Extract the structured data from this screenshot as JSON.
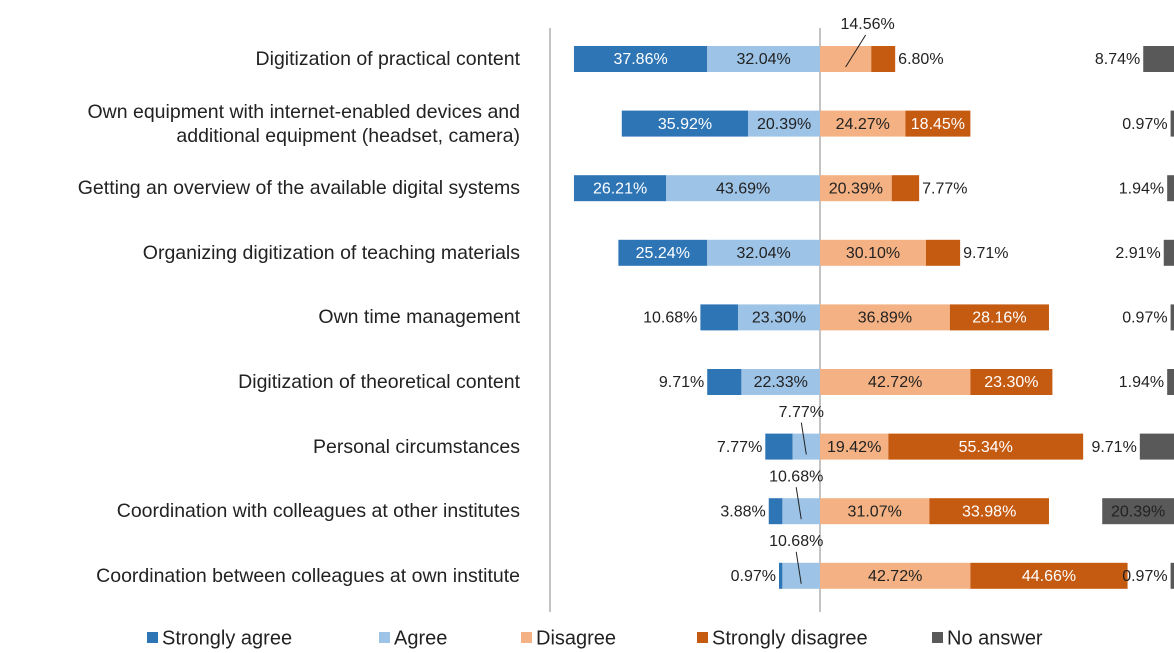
{
  "chart_data": {
    "type": "diverging_bar",
    "categories": [
      "Digitization of practical content",
      "Own equipment with internet-enabled devices and additional equipment (headset, camera)",
      "Getting an overview of the available digital systems",
      "Organizing digitization of teaching materials",
      "Own time management",
      "Digitization of theoretical content",
      "Personal circumstances",
      "Coordination with colleagues at other institutes",
      "Coordination between colleagues at own institute"
    ],
    "series": [
      {
        "name": "Strongly agree",
        "color": "#2e75b6",
        "values": [
          37.86,
          35.92,
          26.21,
          25.24,
          10.68,
          9.71,
          7.77,
          3.88,
          0.97
        ],
        "value_labels": [
          "37.86%",
          "35.92%",
          "26.21%",
          "25.24%",
          "10.68%",
          "9.71%",
          "7.77%",
          "3.88%",
          "0.97%"
        ]
      },
      {
        "name": "Agree",
        "color": "#9dc3e6",
        "values": [
          32.04,
          20.39,
          43.69,
          32.04,
          23.3,
          22.33,
          7.77,
          10.68,
          10.68
        ],
        "value_labels": [
          "32.04%",
          "20.39%",
          "43.69%",
          "32.04%",
          "23.30%",
          "22.33%",
          "7.77%",
          "10.68%",
          "10.68%"
        ]
      },
      {
        "name": "Disagree",
        "color": "#f4b183",
        "values": [
          14.56,
          24.27,
          20.39,
          30.1,
          36.89,
          42.72,
          19.42,
          31.07,
          42.72
        ],
        "value_labels": [
          "14.56%",
          "24.27%",
          "20.39%",
          "30.10%",
          "36.89%",
          "42.72%",
          "19.42%",
          "31.07%",
          "42.72%"
        ]
      },
      {
        "name": "Strongly disagree",
        "color": "#c55a11",
        "values": [
          6.8,
          18.45,
          7.77,
          9.71,
          28.16,
          23.3,
          55.34,
          33.98,
          44.66
        ],
        "value_labels": [
          "6.80%",
          "18.45%",
          "7.77%",
          "9.71%",
          "28.16%",
          "23.30%",
          "55.34%",
          "33.98%",
          "44.66%"
        ]
      },
      {
        "name": "No answer",
        "color": "#595959",
        "values": [
          8.74,
          0.97,
          1.94,
          2.91,
          0.97,
          1.94,
          9.71,
          20.39,
          0.97
        ],
        "value_labels": [
          "8.74%",
          "0.97%",
          "1.94%",
          "2.91%",
          "0.97%",
          "1.94%",
          "9.71%",
          "20.39%",
          "0.97%"
        ]
      }
    ]
  }
}
